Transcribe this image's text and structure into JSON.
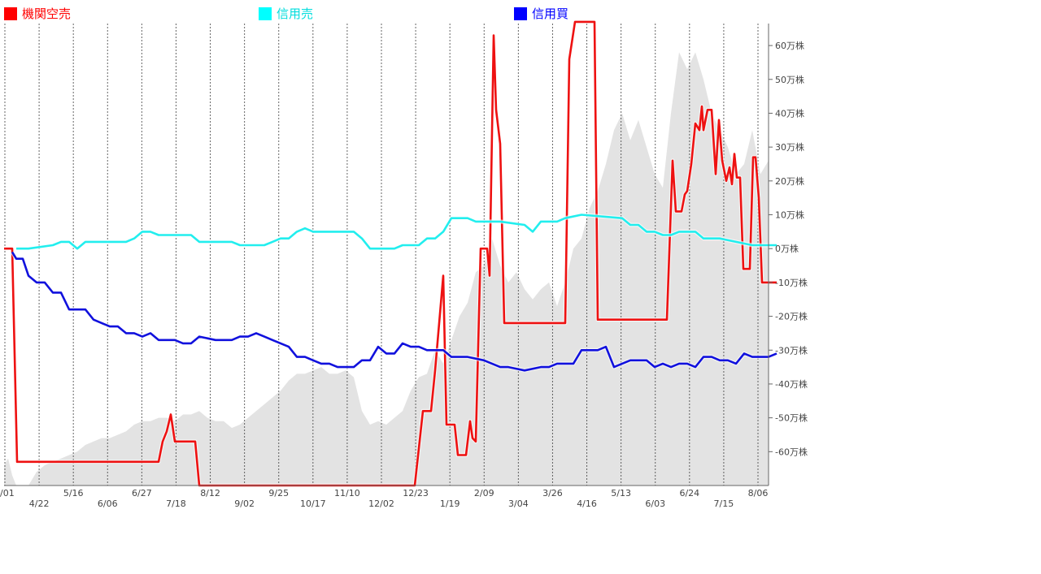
{
  "chart_data": {
    "type": "line",
    "title": "",
    "xlabel": "",
    "ylabel": "",
    "legend": [
      {
        "name": "機関空売",
        "color": "#ff0000"
      },
      {
        "name": "信用売",
        "color": "#00ffff"
      },
      {
        "name": "信用買",
        "color": "#0000ff"
      }
    ],
    "x_tick_labels_row1": [
      "/01",
      "5/16",
      "6/27",
      "8/12",
      "9/25",
      "11/10",
      "12/23",
      "2/09",
      "3/26",
      "5/13",
      "6/24",
      "8/06"
    ],
    "x_tick_labels_row2": [
      "4/22",
      "6/06",
      "7/18",
      "9/02",
      "10/17",
      "12/02",
      "1/19",
      "3/04",
      "4/16",
      "6/03",
      "7/15"
    ],
    "y_tick_labels": [
      "60万株",
      "50万株",
      "40万株",
      "30万株",
      "20万株",
      "10万株",
      "0万株",
      "-10万株",
      "-20万株",
      "-30万株",
      "-40万株",
      "-50万株",
      "-60万株"
    ],
    "y_ticks": [
      60,
      50,
      40,
      30,
      20,
      10,
      0,
      -10,
      -20,
      -30,
      -40,
      -50,
      -60
    ],
    "ylim": [
      -70,
      66.5
    ],
    "y_unit": "万株",
    "y_axis_position": "right",
    "grid": "vertical dotted",
    "legend_position": "top",
    "x_range": [
      0,
      94
    ],
    "background_area": {
      "color": "#e3e3e3",
      "points": [
        [
          0,
          -64
        ],
        [
          0.5,
          -62
        ],
        [
          1,
          -67
        ],
        [
          1.5,
          -70
        ],
        [
          3,
          -70
        ],
        [
          4,
          -66
        ],
        [
          5,
          -64
        ],
        [
          6,
          -63
        ],
        [
          7,
          -62
        ],
        [
          8,
          -61
        ],
        [
          9,
          -60
        ],
        [
          10,
          -58
        ],
        [
          11,
          -57
        ],
        [
          12,
          -56
        ],
        [
          13,
          -56
        ],
        [
          14,
          -55
        ],
        [
          15,
          -54
        ],
        [
          16,
          -52
        ],
        [
          17,
          -51
        ],
        [
          18,
          -51
        ],
        [
          19,
          -50
        ],
        [
          20,
          -50
        ],
        [
          21,
          -51
        ],
        [
          22,
          -49
        ],
        [
          23,
          -49
        ],
        [
          24,
          -48
        ],
        [
          25,
          -50
        ],
        [
          26,
          -51
        ],
        [
          27,
          -51
        ],
        [
          28,
          -53
        ],
        [
          29,
          -52
        ],
        [
          30,
          -50
        ],
        [
          31,
          -48
        ],
        [
          32,
          -46
        ],
        [
          33,
          -44
        ],
        [
          34,
          -42
        ],
        [
          35,
          -39
        ],
        [
          36,
          -37
        ],
        [
          37,
          -37
        ],
        [
          38,
          -36
        ],
        [
          39,
          -35
        ],
        [
          40,
          -37
        ],
        [
          41,
          -37
        ],
        [
          42,
          -36
        ],
        [
          43,
          -38
        ],
        [
          44,
          -48
        ],
        [
          45,
          -52
        ],
        [
          46,
          -51
        ],
        [
          47,
          -52
        ],
        [
          48,
          -50
        ],
        [
          49,
          -48
        ],
        [
          50,
          -42
        ],
        [
          51,
          -38
        ],
        [
          52,
          -37
        ],
        [
          53,
          -30
        ],
        [
          54,
          -34
        ],
        [
          55,
          -27
        ],
        [
          56,
          -20
        ],
        [
          57,
          -16
        ],
        [
          58,
          -7
        ],
        [
          59,
          -5
        ],
        [
          60,
          3
        ],
        [
          61,
          -5
        ],
        [
          62,
          -10
        ],
        [
          63,
          -7
        ],
        [
          64,
          -12
        ],
        [
          65,
          -15
        ],
        [
          66,
          -12
        ],
        [
          67,
          -10
        ],
        [
          68,
          -17
        ],
        [
          69,
          -10
        ],
        [
          70,
          0
        ],
        [
          71,
          3
        ],
        [
          72,
          12
        ],
        [
          73,
          17
        ],
        [
          74,
          25
        ],
        [
          75,
          35
        ],
        [
          76,
          40
        ],
        [
          77,
          32
        ],
        [
          78,
          38
        ],
        [
          79,
          30
        ],
        [
          80,
          22
        ],
        [
          81,
          18
        ],
        [
          82,
          40
        ],
        [
          83,
          58
        ],
        [
          84,
          53
        ],
        [
          85,
          58
        ],
        [
          86,
          50
        ],
        [
          87,
          40
        ],
        [
          88,
          35
        ],
        [
          89,
          30
        ],
        [
          90,
          22
        ],
        [
          91,
          25
        ],
        [
          92,
          35
        ],
        [
          93,
          22
        ],
        [
          94,
          26
        ],
        [
          94,
          -70
        ]
      ]
    },
    "series": [
      {
        "name": "機関空売",
        "color": "#ee1111",
        "points": [
          [
            0,
            0
          ],
          [
            1,
            0
          ],
          [
            1.6,
            -63
          ],
          [
            19,
            -63
          ],
          [
            19.5,
            -57
          ],
          [
            20,
            -54
          ],
          [
            20.5,
            -49
          ],
          [
            21,
            -57
          ],
          [
            23.5,
            -57
          ],
          [
            24,
            -70
          ],
          [
            50.5,
            -70
          ],
          [
            51.5,
            -48
          ],
          [
            52.5,
            -48
          ],
          [
            53,
            -36
          ],
          [
            54,
            -8
          ],
          [
            54.4,
            -52
          ],
          [
            55.4,
            -52
          ],
          [
            55.8,
            -61
          ],
          [
            56.8,
            -61
          ],
          [
            57.3,
            -51
          ],
          [
            57.6,
            -56
          ],
          [
            58,
            -57
          ],
          [
            58.6,
            0
          ],
          [
            59.4,
            0
          ],
          [
            59.7,
            -8
          ],
          [
            60.2,
            63
          ],
          [
            60.5,
            41
          ],
          [
            61,
            31
          ],
          [
            61.5,
            -22
          ],
          [
            69,
            -22
          ],
          [
            69.5,
            56
          ],
          [
            70.2,
            67
          ],
          [
            72.6,
            67
          ],
          [
            73,
            -21
          ],
          [
            81.5,
            -21
          ],
          [
            82.2,
            26
          ],
          [
            82.6,
            11
          ],
          [
            83.3,
            11
          ],
          [
            83.7,
            16
          ],
          [
            84,
            17
          ],
          [
            84.5,
            25
          ],
          [
            85,
            37
          ],
          [
            85.5,
            35
          ],
          [
            85.8,
            42
          ],
          [
            86,
            35
          ],
          [
            86.5,
            41
          ],
          [
            87,
            41
          ],
          [
            87.5,
            22
          ],
          [
            87.9,
            38
          ],
          [
            88.3,
            26
          ],
          [
            88.8,
            20
          ],
          [
            89.2,
            24
          ],
          [
            89.5,
            19
          ],
          [
            89.8,
            28
          ],
          [
            90.1,
            21
          ],
          [
            90.5,
            21
          ],
          [
            90.9,
            -6
          ],
          [
            91.7,
            -6
          ],
          [
            92.1,
            27
          ],
          [
            92.4,
            27
          ],
          [
            92.8,
            15
          ],
          [
            93.2,
            -10
          ],
          [
            95,
            -10
          ]
        ]
      },
      {
        "name": "信用売",
        "color": "#22eeee",
        "points": [
          [
            1.5,
            0
          ],
          [
            3,
            0
          ],
          [
            6,
            1
          ],
          [
            7,
            2
          ],
          [
            8,
            2
          ],
          [
            9,
            0
          ],
          [
            10,
            2
          ],
          [
            13,
            2
          ],
          [
            15,
            2
          ],
          [
            16,
            3
          ],
          [
            17,
            5
          ],
          [
            18,
            5
          ],
          [
            19,
            4
          ],
          [
            20,
            4
          ],
          [
            23,
            4
          ],
          [
            24,
            2
          ],
          [
            26,
            2
          ],
          [
            28,
            2
          ],
          [
            29,
            1
          ],
          [
            32,
            1
          ],
          [
            33,
            2
          ],
          [
            34,
            3
          ],
          [
            35,
            3
          ],
          [
            36,
            5
          ],
          [
            37,
            6
          ],
          [
            38,
            5
          ],
          [
            41,
            5
          ],
          [
            43,
            5
          ],
          [
            44,
            3
          ],
          [
            45,
            0
          ],
          [
            46,
            0
          ],
          [
            48,
            0
          ],
          [
            49,
            1
          ],
          [
            51,
            1
          ],
          [
            52,
            3
          ],
          [
            53,
            3
          ],
          [
            54,
            5
          ],
          [
            55,
            9
          ],
          [
            57,
            9
          ],
          [
            58,
            8
          ],
          [
            61,
            8
          ],
          [
            64,
            7
          ],
          [
            65,
            5
          ],
          [
            66,
            8
          ],
          [
            68,
            8
          ],
          [
            69,
            9
          ],
          [
            71,
            10
          ],
          [
            76,
            9
          ],
          [
            77,
            7
          ],
          [
            78,
            7
          ],
          [
            79,
            5
          ],
          [
            80,
            5
          ],
          [
            81,
            4
          ],
          [
            82,
            4
          ],
          [
            83,
            5
          ],
          [
            85,
            5
          ],
          [
            86,
            3
          ],
          [
            88,
            3
          ],
          [
            90,
            2
          ],
          [
            92,
            1
          ],
          [
            95,
            1
          ]
        ]
      },
      {
        "name": "信用買",
        "color": "#1111dd",
        "points": [
          [
            1,
            -1
          ],
          [
            1.5,
            -3
          ],
          [
            2.3,
            -3
          ],
          [
            3,
            -8
          ],
          [
            4,
            -10
          ],
          [
            5,
            -10
          ],
          [
            6,
            -13
          ],
          [
            7,
            -13
          ],
          [
            8,
            -18
          ],
          [
            10,
            -18
          ],
          [
            11,
            -21
          ],
          [
            12,
            -22
          ],
          [
            13,
            -23
          ],
          [
            14,
            -23
          ],
          [
            15,
            -25
          ],
          [
            16,
            -25
          ],
          [
            17,
            -26
          ],
          [
            18,
            -25
          ],
          [
            19,
            -27
          ],
          [
            20,
            -27
          ],
          [
            21,
            -27
          ],
          [
            22,
            -28
          ],
          [
            23,
            -28
          ],
          [
            24,
            -26
          ],
          [
            26,
            -27
          ],
          [
            27,
            -27
          ],
          [
            28,
            -27
          ],
          [
            29,
            -26
          ],
          [
            30,
            -26
          ],
          [
            31,
            -25
          ],
          [
            32,
            -26
          ],
          [
            33,
            -27
          ],
          [
            34,
            -28
          ],
          [
            35,
            -29
          ],
          [
            36,
            -32
          ],
          [
            37,
            -32
          ],
          [
            38,
            -33
          ],
          [
            39,
            -34
          ],
          [
            40,
            -34
          ],
          [
            41,
            -35
          ],
          [
            43,
            -35
          ],
          [
            44,
            -33
          ],
          [
            45,
            -33
          ],
          [
            46,
            -29
          ],
          [
            47,
            -31
          ],
          [
            48,
            -31
          ],
          [
            49,
            -28
          ],
          [
            50,
            -29
          ],
          [
            51,
            -29
          ],
          [
            52,
            -30
          ],
          [
            54,
            -30
          ],
          [
            55,
            -32
          ],
          [
            57,
            -32
          ],
          [
            59,
            -33
          ],
          [
            60,
            -34
          ],
          [
            61,
            -35
          ],
          [
            62,
            -35
          ],
          [
            64,
            -36
          ],
          [
            66,
            -35
          ],
          [
            67,
            -35
          ],
          [
            68,
            -34
          ],
          [
            70,
            -34
          ],
          [
            71,
            -30
          ],
          [
            72,
            -30
          ],
          [
            73,
            -30
          ],
          [
            74,
            -29
          ],
          [
            75,
            -35
          ],
          [
            76,
            -34
          ],
          [
            77,
            -33
          ],
          [
            78,
            -33
          ],
          [
            79,
            -33
          ],
          [
            80,
            -35
          ],
          [
            81,
            -34
          ],
          [
            82,
            -35
          ],
          [
            83,
            -34
          ],
          [
            84,
            -34
          ],
          [
            85,
            -35
          ],
          [
            86,
            -32
          ],
          [
            87,
            -32
          ],
          [
            88,
            -33
          ],
          [
            89,
            -33
          ],
          [
            90,
            -34
          ],
          [
            91,
            -31
          ],
          [
            92,
            -32
          ],
          [
            93,
            -32
          ],
          [
            94,
            -32
          ],
          [
            95,
            -31
          ]
        ]
      }
    ]
  }
}
